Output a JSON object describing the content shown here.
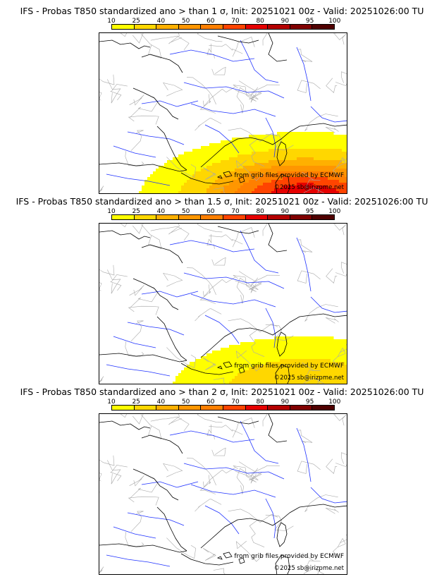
{
  "panels": [
    {
      "title": "IFS - Probas T850  standardized ano > than 1 σ, Init: 20251021 00z - Valid: 20251026:00 TU",
      "sigma_threshold": 1,
      "max_probability_percent": 90
    },
    {
      "title": "IFS - Probas T850  standardized ano > than 1.5 σ, Init: 20251021 00z - Valid: 20251026:00 TU",
      "sigma_threshold": 1.5,
      "max_probability_percent": 40
    },
    {
      "title": "IFS - Probas T850  standardized ano > than 2 σ, Init: 20251021 00z - Valid: 20251026:00 TU",
      "sigma_threshold": 2,
      "max_probability_percent": 10
    }
  ],
  "colorbar": {
    "labels": [
      "10",
      "25",
      "40",
      "50",
      "60",
      "70",
      "80",
      "90",
      "95",
      "100"
    ],
    "colors": [
      "#ffff00",
      "#ffd700",
      "#ffb000",
      "#ff9600",
      "#ff7f00",
      "#ff4400",
      "#e60000",
      "#b40000",
      "#800000",
      "#500000"
    ]
  },
  "credits": {
    "grib": "from grib files provided by ECMWF",
    "copyright": "©2025 sb@irizpme.net"
  },
  "map_colors": {
    "coast": "#000000",
    "rivers": "#1f32ff",
    "borders": "#a9a9a9"
  }
}
